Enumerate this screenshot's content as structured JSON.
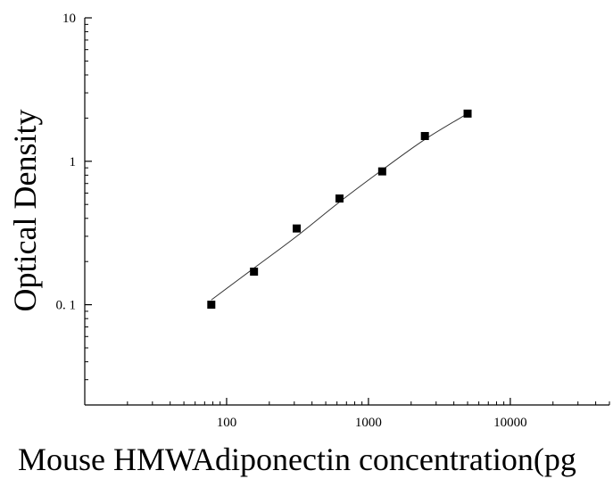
{
  "chart_data": {
    "type": "scatter",
    "title": "",
    "xlabel": "Mouse HMWAdiponectin concentration(pg",
    "ylabel": "Optical Density",
    "x_scale": "log",
    "y_scale": "log",
    "xlim": [
      10,
      50000
    ],
    "ylim": [
      0.02,
      10
    ],
    "x_ticks": [
      100,
      1000,
      10000
    ],
    "x_tick_labels": [
      "100",
      "1000",
      "10000"
    ],
    "y_ticks": [
      0.1,
      1,
      10
    ],
    "y_tick_labels": [
      "0. 1",
      "1",
      "10"
    ],
    "grid": false,
    "series": [
      {
        "x": [
          78,
          156,
          312,
          625,
          1250,
          2500,
          5000
        ],
        "y": [
          0.1,
          0.17,
          0.34,
          0.55,
          0.85,
          1.5,
          2.15
        ],
        "marker": "square",
        "color": "#000000"
      }
    ],
    "fit_curve": {
      "x": [
        78,
        156,
        312,
        625,
        1250,
        2500,
        5000
      ],
      "y": [
        0.108,
        0.18,
        0.3,
        0.52,
        0.87,
        1.42,
        2.15
      ],
      "color": "#333333"
    }
  }
}
